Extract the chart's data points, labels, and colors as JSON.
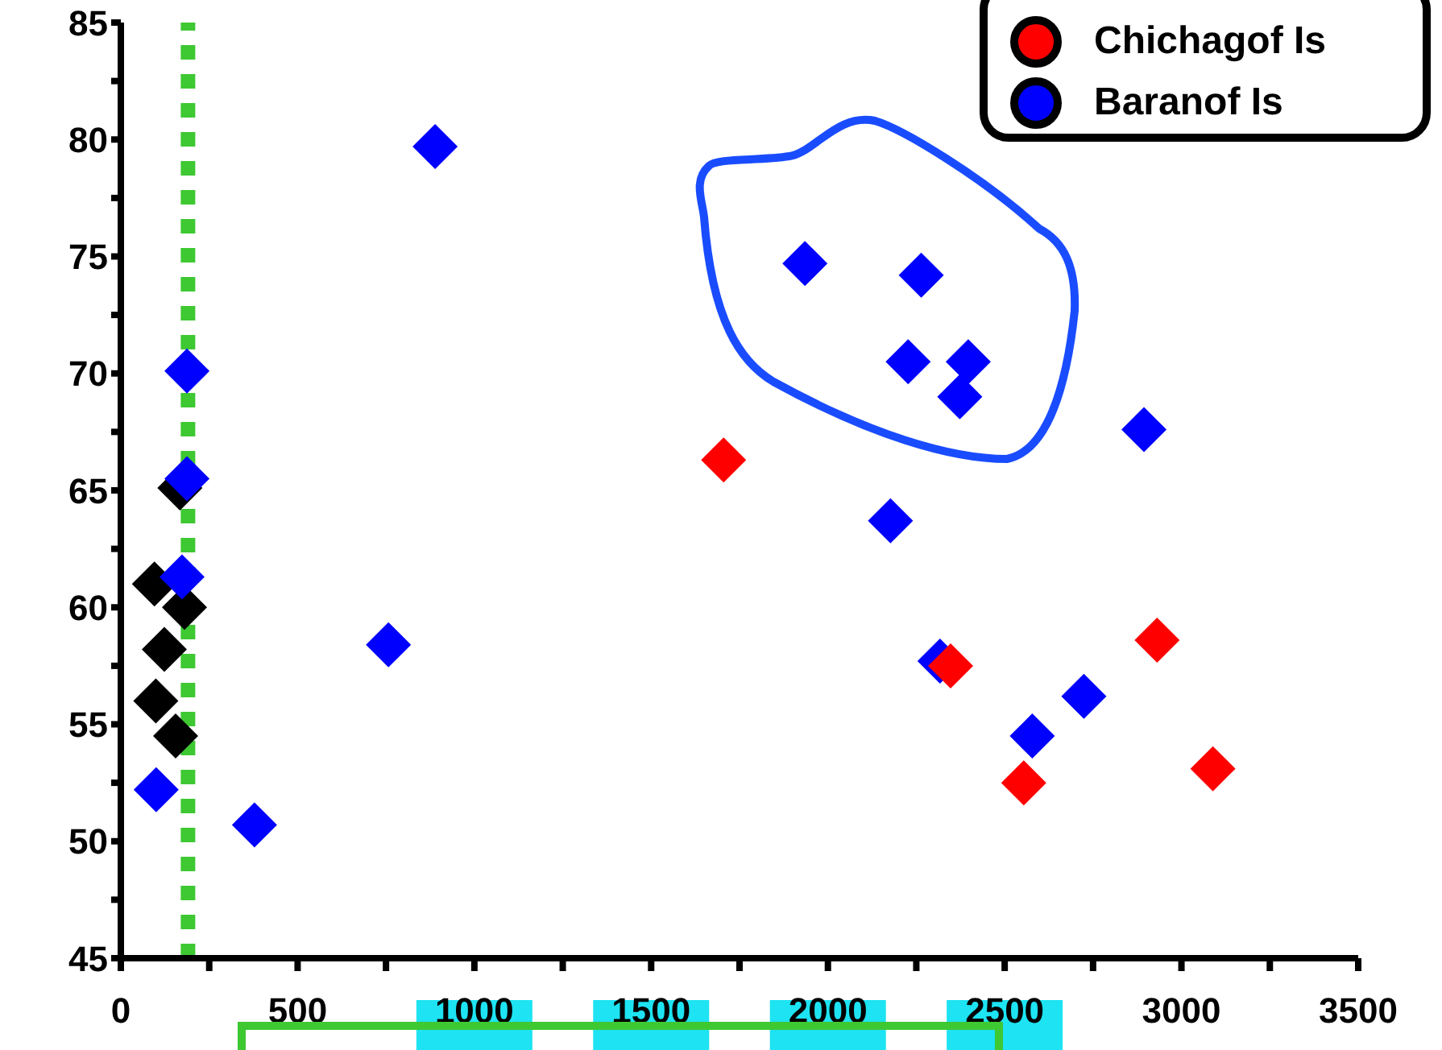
{
  "chart_data": {
    "type": "scatter",
    "marker": "diamond",
    "legend": "top right",
    "grid": false,
    "series": [
      {
        "name": "Chichagof Is",
        "color": "#ff0000",
        "x": [
          1705,
          2347,
          2931,
          2554,
          3089
        ],
        "values": [
          66.3,
          57.5,
          58.6,
          52.5,
          53.1
        ]
      },
      {
        "name": "Baranof Is",
        "color": "#0000ff",
        "x": [
          889,
          187,
          187,
          173,
          100,
          378,
          757,
          1935,
          2264,
          2227,
          2397,
          2373,
          2894,
          2177,
          2317,
          2724,
          2578
        ],
        "values": [
          79.7,
          70.1,
          65.5,
          61.3,
          52.2,
          50.7,
          58.4,
          74.7,
          74.2,
          70.5,
          70.5,
          69.0,
          67.6,
          63.7,
          57.7,
          56.2,
          54.5
        ]
      },
      {
        "color": "#000000",
        "x": [
          167,
          95,
          180,
          123,
          99,
          155
        ],
        "values": [
          65.1,
          61.0,
          60.0,
          58.2,
          56.0,
          54.5
        ]
      }
    ],
    "xlim": [
      0,
      3500
    ],
    "xticks": [
      0,
      {
        "value": 250,
        "label": null
      },
      500,
      {
        "value": 750,
        "label": null
      },
      1000,
      {
        "value": 1250,
        "label": null
      },
      1500,
      {
        "value": 1750,
        "label": null
      },
      2000,
      {
        "value": 2250,
        "label": null
      },
      2500,
      {
        "value": 2750,
        "label": null
      },
      3000,
      {
        "value": 3250,
        "label": null
      },
      3500
    ],
    "ylim": [
      45,
      85
    ],
    "yticks": [
      45,
      {
        "value": 47.5,
        "label": null
      },
      50,
      {
        "value": 52.5,
        "label": null
      },
      55,
      {
        "value": 57.5,
        "label": null
      },
      60,
      {
        "value": 62.5,
        "label": null
      },
      65,
      {
        "value": 67.5,
        "label": null
      },
      70,
      {
        "value": 72.5,
        "label": null
      },
      75,
      {
        "value": 77.5,
        "label": null
      },
      80,
      {
        "value": 82.5,
        "label": null
      },
      85
    ],
    "ref_lines": [
      {
        "axis": "x",
        "value": 190,
        "color": "#3ec832",
        "line_style": "dotted"
      }
    ]
  }
}
